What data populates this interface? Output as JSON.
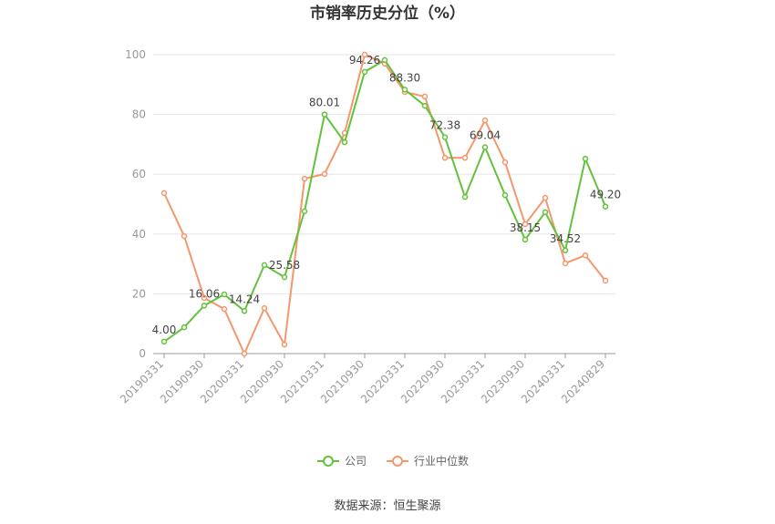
{
  "chart_data": {
    "type": "line",
    "title": "市销率历史分位（%）",
    "categories": [
      "20190331",
      null,
      "20190930",
      null,
      "20200331",
      null,
      "20200930",
      null,
      "20210331",
      null,
      "20210930",
      null,
      "20220331",
      null,
      "20220930",
      null,
      "20230331",
      null,
      "20230930",
      null,
      "20240331",
      null,
      "20240829"
    ],
    "series": [
      {
        "name": "公司",
        "color": "#62c23b",
        "values": [
          4.0,
          8.8,
          16.06,
          19.8,
          14.24,
          29.6,
          25.58,
          47.6,
          80.01,
          70.7,
          94.26,
          98.2,
          88.3,
          82.9,
          72.38,
          52.4,
          69.04,
          53.0,
          38.15,
          47.3,
          34.52,
          65.2,
          49.2
        ],
        "value_labels": [
          "4.00",
          null,
          "16.06",
          null,
          "14.24",
          null,
          "25.58",
          null,
          "80.01",
          null,
          "94.26",
          null,
          "88.30",
          null,
          "72.38",
          null,
          "69.04",
          null,
          "38.15",
          null,
          "34.52",
          null,
          "49.20"
        ]
      },
      {
        "name": "行业中位数",
        "color": "#f4976c",
        "values": [
          53.7,
          39.3,
          18.6,
          14.9,
          0,
          15.2,
          3.0,
          58.5,
          60.1,
          73.8,
          100,
          97,
          87.5,
          86,
          65.5,
          65.5,
          78,
          64,
          43.3,
          52.1,
          30.2,
          32.9,
          24.4
        ]
      }
    ],
    "ylim": [
      0,
      100
    ],
    "yticks": [
      0,
      20,
      40,
      60,
      80,
      100
    ],
    "grid": true,
    "legend": "bottom",
    "source": "数据来源：恒生聚源"
  }
}
